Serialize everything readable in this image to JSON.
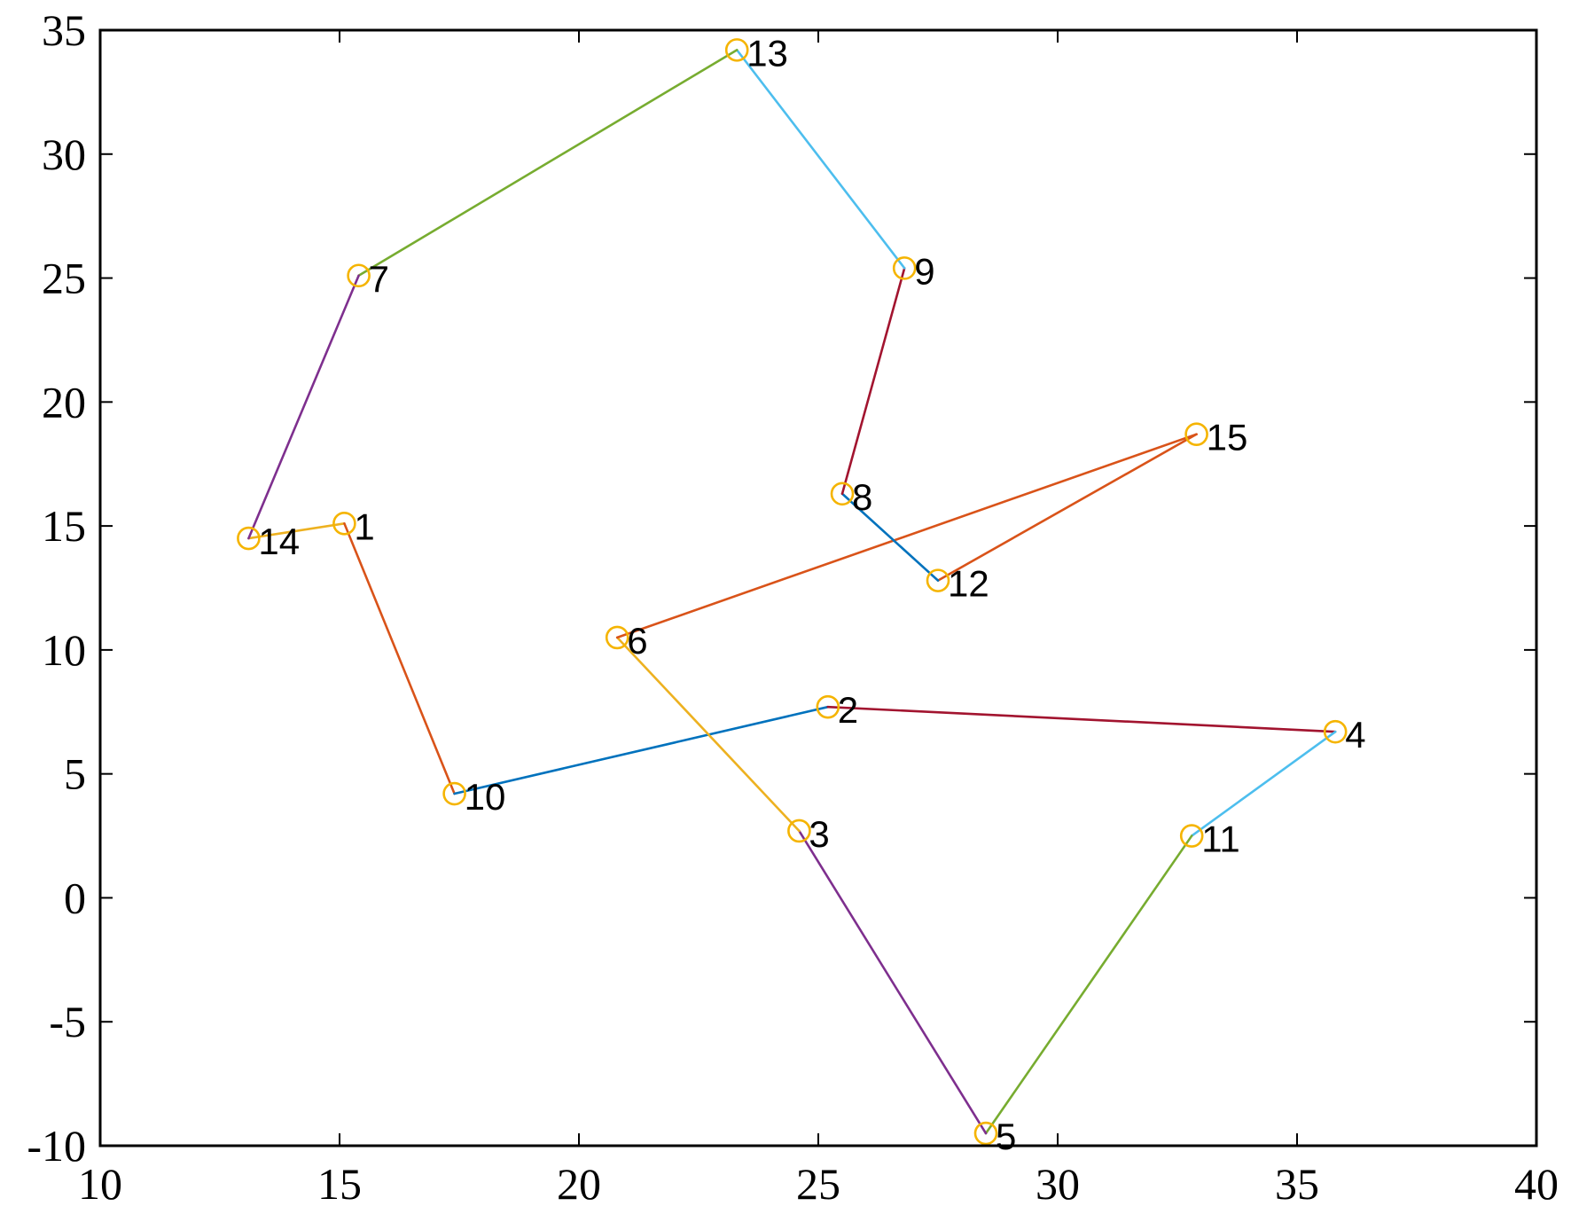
{
  "chart_data": {
    "type": "line",
    "title": "",
    "xlabel": "",
    "ylabel": "",
    "xlim": [
      10,
      40
    ],
    "ylim": [
      -10,
      35
    ],
    "grid": false,
    "xticks": [
      10,
      15,
      20,
      25,
      30,
      35,
      40
    ],
    "yticks": [
      -10,
      -5,
      0,
      5,
      10,
      15,
      20,
      25,
      30,
      35
    ],
    "xtick_labels": [
      "10",
      "15",
      "20",
      "25",
      "30",
      "35",
      "40"
    ],
    "ytick_labels": [
      "-10",
      "-5",
      "0",
      "5",
      "10",
      "15",
      "20",
      "25",
      "30",
      "35"
    ],
    "marker": "circle",
    "marker_color": "#f5b400",
    "points": [
      {
        "label": "1",
        "x": 15.1,
        "y": 15.1
      },
      {
        "label": "2",
        "x": 25.2,
        "y": 7.7
      },
      {
        "label": "3",
        "x": 24.6,
        "y": 2.7
      },
      {
        "label": "4",
        "x": 35.8,
        "y": 6.7
      },
      {
        "label": "5",
        "x": 28.5,
        "y": -9.5
      },
      {
        "label": "6",
        "x": 20.8,
        "y": 10.5
      },
      {
        "label": "7",
        "x": 15.4,
        "y": 25.1
      },
      {
        "label": "8",
        "x": 25.5,
        "y": 16.3
      },
      {
        "label": "9",
        "x": 26.8,
        "y": 25.4
      },
      {
        "label": "10",
        "x": 17.4,
        "y": 4.2
      },
      {
        "label": "11",
        "x": 32.8,
        "y": 2.5
      },
      {
        "label": "12",
        "x": 27.5,
        "y": 12.8
      },
      {
        "label": "13",
        "x": 23.3,
        "y": 34.2
      },
      {
        "label": "14",
        "x": 13.1,
        "y": 14.5
      },
      {
        "label": "15",
        "x": 32.9,
        "y": 18.7
      }
    ],
    "segments": [
      {
        "from": "14",
        "to": "1",
        "color": "#edb120"
      },
      {
        "from": "1",
        "to": "10",
        "color": "#d95319"
      },
      {
        "from": "10",
        "to": "2",
        "color": "#0072bd"
      },
      {
        "from": "2",
        "to": "4",
        "color": "#a2142f"
      },
      {
        "from": "4",
        "to": "11",
        "color": "#4dbeee"
      },
      {
        "from": "11",
        "to": "5",
        "color": "#77ac30"
      },
      {
        "from": "5",
        "to": "3",
        "color": "#7e2f8e"
      },
      {
        "from": "3",
        "to": "6",
        "color": "#edb120"
      },
      {
        "from": "6",
        "to": "15",
        "color": "#d95319"
      },
      {
        "from": "15",
        "to": "12",
        "color": "#d95319"
      },
      {
        "from": "12",
        "to": "8",
        "color": "#0072bd"
      },
      {
        "from": "8",
        "to": "9",
        "color": "#a2142f"
      },
      {
        "from": "9",
        "to": "13",
        "color": "#4dbeee"
      },
      {
        "from": "13",
        "to": "7",
        "color": "#77ac30"
      },
      {
        "from": "7",
        "to": "14",
        "color": "#7e2f8e"
      }
    ]
  }
}
